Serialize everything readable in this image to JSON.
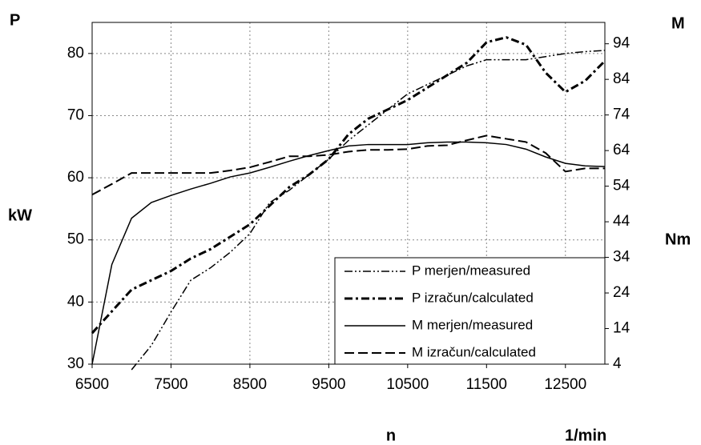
{
  "chart_data": {
    "type": "line",
    "y_label_top": "P",
    "y_label": "kW",
    "y2_label_top": "M",
    "y2_label": "Nm",
    "x_label": "n",
    "x_unit": "1/min",
    "x": [
      6500,
      6750,
      7000,
      7250,
      7500,
      7750,
      8000,
      8250,
      8500,
      8750,
      9000,
      9250,
      9500,
      9750,
      10000,
      10250,
      10500,
      10750,
      11000,
      11250,
      11500,
      11750,
      12000,
      12250,
      12500,
      12750,
      13000
    ],
    "series": [
      {
        "name": "P merjen/measured",
        "color": "#000000",
        "dash": "10 3 2 3 2 3",
        "width": 1.5,
        "axis": "y",
        "values": [
          null,
          null,
          29.1,
          33,
          38.4,
          43.5,
          45.5,
          48,
          51,
          56,
          58,
          60.5,
          63,
          66,
          68.5,
          71,
          73.5,
          75,
          76.5,
          78,
          79,
          79,
          79,
          79.5,
          80,
          80.3,
          80.5
        ]
      },
      {
        "name": "P izračun/calculated",
        "color": "#000000",
        "dash": "10 4 3 4",
        "width": 3,
        "axis": "y",
        "values": [
          35,
          38.5,
          42,
          43.5,
          45,
          47,
          48.5,
          50.5,
          52.5,
          55.5,
          58.5,
          60.5,
          63,
          67,
          69.5,
          71,
          72.5,
          74.5,
          76.5,
          78.5,
          81.8,
          82.6,
          81.4,
          76.9,
          73.8,
          75.6,
          78.8
        ]
      },
      {
        "name": "M merjen/measured",
        "color": "#000000",
        "dash": "none",
        "width": 1.5,
        "axis": "y2",
        "values": [
          4,
          32,
          45,
          49.4,
          51.4,
          53.2,
          54.8,
          56.6,
          57.7,
          59.3,
          61,
          62.6,
          64,
          65.3,
          65.7,
          65.7,
          65.7,
          66.2,
          66.4,
          66.4,
          66.2,
          65.7,
          64.4,
          62.2,
          60.4,
          59.7,
          59.5
        ]
      },
      {
        "name": "M izračun/calculated",
        "color": "#000000",
        "dash": "12 5",
        "width": 2,
        "axis": "y2",
        "values": [
          51.6,
          54.6,
          57.7,
          57.7,
          57.7,
          57.7,
          57.7,
          58.4,
          59.3,
          60.8,
          62.4,
          62.4,
          62.8,
          63.7,
          64.2,
          64.2,
          64.4,
          65.3,
          65.5,
          66.9,
          68.2,
          67.3,
          66.4,
          63.3,
          58.1,
          59,
          59
        ]
      }
    ],
    "xlim": [
      6500,
      13000
    ],
    "xticks": [
      6500,
      7500,
      8500,
      9500,
      10500,
      11500,
      12500
    ],
    "ylim": [
      30,
      85
    ],
    "yticks": [
      30,
      40,
      50,
      60,
      70,
      80
    ],
    "y2lim": [
      4,
      100
    ],
    "y2ticks": [
      4,
      14,
      24,
      34,
      44,
      54,
      64,
      74,
      84,
      94
    ],
    "grid": true,
    "legend": "lower-right"
  }
}
